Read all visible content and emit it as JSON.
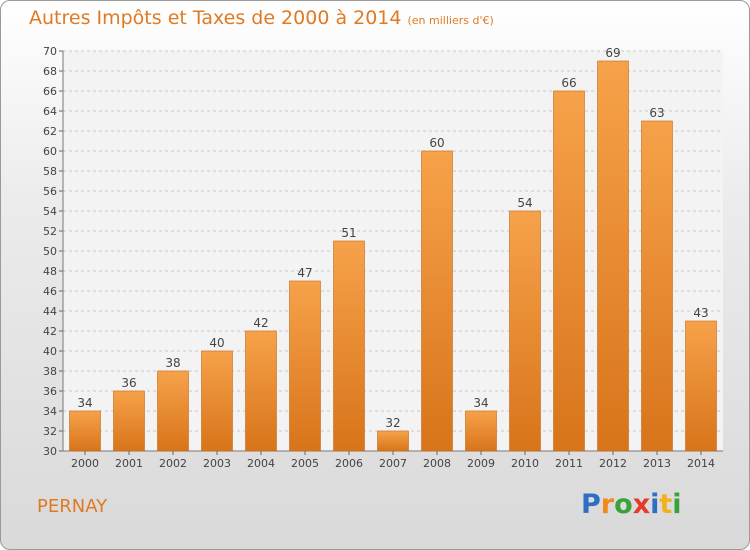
{
  "header": {
    "title": "Autres Impôts et Taxes de 2000 à 2014",
    "unit": "(en milliers d'€)"
  },
  "footer": {
    "town": "PERNAY",
    "logo": [
      {
        "ch": "P",
        "color": "#2e6fc3"
      },
      {
        "ch": "r",
        "color": "#f08a1c"
      },
      {
        "ch": "o",
        "color": "#3aa23a"
      },
      {
        "ch": "x",
        "color": "#e63a2a"
      },
      {
        "ch": "i",
        "color": "#2e6fc3"
      },
      {
        "ch": "t",
        "color": "#f0b21c"
      },
      {
        "ch": "i",
        "color": "#3aa23a"
      }
    ]
  },
  "colors": {
    "title": "#e07a22",
    "bar_light": "#f6a24a",
    "bar_dark": "#d8741a",
    "grid": "#c8c8c8"
  },
  "chart_data": {
    "type": "bar",
    "title": "Autres Impôts et Taxes de 2000 à 2014",
    "subtitle": "(en milliers d'€)",
    "categories": [
      "2000",
      "2001",
      "2002",
      "2003",
      "2004",
      "2005",
      "2006",
      "2007",
      "2008",
      "2009",
      "2010",
      "2011",
      "2012",
      "2013",
      "2014"
    ],
    "values": [
      34,
      36,
      38,
      40,
      42,
      47,
      51,
      32,
      60,
      34,
      54,
      66,
      69,
      63,
      43
    ],
    "ylim": [
      30,
      70
    ],
    "yticks": [
      30,
      32,
      34,
      36,
      38,
      40,
      42,
      44,
      46,
      48,
      50,
      52,
      54,
      56,
      58,
      60,
      62,
      64,
      66,
      68,
      70
    ],
    "grid": true,
    "data_labels": true
  }
}
